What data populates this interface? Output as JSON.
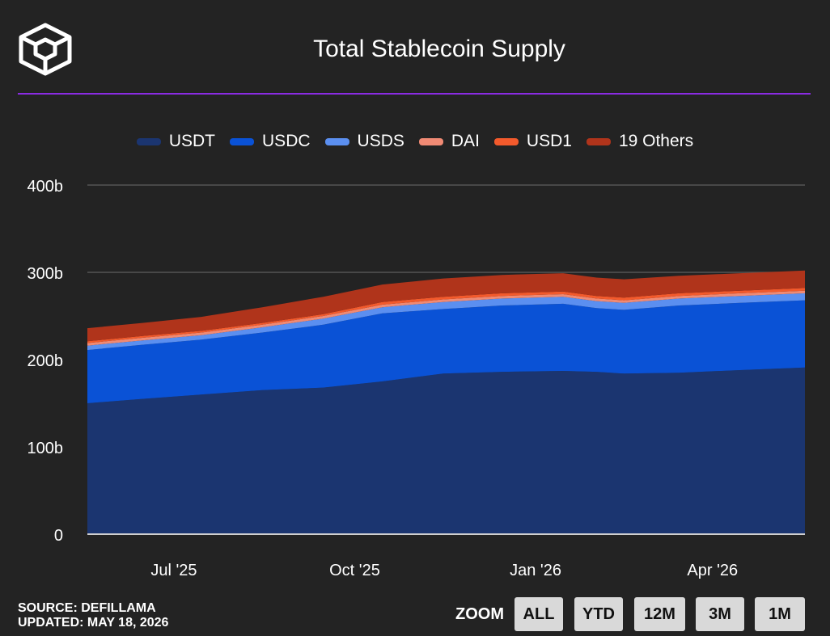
{
  "header": {
    "title": "Total Stablecoin Supply"
  },
  "footer": {
    "source": "SOURCE: DEFILLAMA",
    "updated": "UPDATED: MAY 18, 2026"
  },
  "zoom": {
    "label": "ZOOM",
    "buttons": [
      "ALL",
      "YTD",
      "12M",
      "3M",
      "1M"
    ]
  },
  "colors": {
    "background": "#232323",
    "accent_rule": "#8a2be2",
    "USDT": "#1b3570",
    "USDC": "#0a52d6",
    "USDS": "#5b8ff0",
    "DAI": "#f08a74",
    "USD1": "#f35a2c",
    "Others": "#b0341b"
  },
  "chart_data": {
    "type": "area",
    "stacked": true,
    "title": "Total Stablecoin Supply",
    "xlabel": "",
    "ylabel": "",
    "ylim": [
      0,
      400
    ],
    "y_unit": "b",
    "y_ticks": [
      "0",
      "100b",
      "200b",
      "300b",
      "400b"
    ],
    "y_tick_values": [
      0,
      100,
      200,
      300,
      400
    ],
    "x_tick_labels": [
      "Jul '25",
      "Oct '25",
      "Jan '26",
      "Apr '26"
    ],
    "x_tick_dates": [
      "2025-07-01",
      "2025-10-01",
      "2026-01-01",
      "2026-04-01"
    ],
    "x_range": [
      "2025-05-18",
      "2026-05-18"
    ],
    "grid": true,
    "legend_position": "top",
    "x": [
      "2025-05-18",
      "2025-06-15",
      "2025-07-15",
      "2025-08-15",
      "2025-09-15",
      "2025-10-15",
      "2025-11-15",
      "2025-12-15",
      "2026-01-15",
      "2026-02-01",
      "2026-02-15",
      "2026-03-15",
      "2026-04-15",
      "2026-05-18"
    ],
    "series": [
      {
        "name": "USDT",
        "values": [
          150,
          155,
          160,
          165,
          168,
          175,
          184,
          186,
          187,
          186,
          184,
          185,
          188,
          191
        ]
      },
      {
        "name": "USDC",
        "values": [
          61,
          62,
          63,
          66,
          72,
          78,
          74,
          76,
          77,
          73,
          73,
          77,
          77,
          77
        ]
      },
      {
        "name": "USDS",
        "values": [
          5,
          5,
          5,
          6,
          7,
          7,
          8,
          8,
          8,
          8,
          8,
          8,
          8,
          8
        ]
      },
      {
        "name": "DAI",
        "values": [
          3,
          3,
          3,
          3,
          3,
          3,
          3,
          3,
          3,
          3,
          3,
          3,
          3,
          3
        ]
      },
      {
        "name": "USD1",
        "values": [
          2,
          2,
          2,
          2,
          2,
          3,
          3,
          3,
          3,
          3,
          3,
          3,
          3,
          3
        ]
      },
      {
        "name": "19 Others",
        "values": [
          15,
          15,
          16,
          18,
          20,
          20,
          21,
          21,
          21,
          21,
          21,
          20,
          20,
          20
        ]
      }
    ]
  }
}
